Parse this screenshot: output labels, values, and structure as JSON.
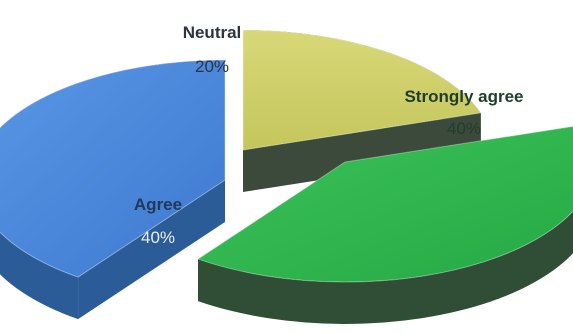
{
  "chart_data": {
    "type": "pie",
    "title": "",
    "three_d": true,
    "exploded": true,
    "slices": [
      {
        "label": "Neutral",
        "percent_label": "20%",
        "value": 20,
        "color": "#cfd06a",
        "side_color": "#3c4a3c",
        "label_color": "#2c3440",
        "percent_color": "#2c3440"
      },
      {
        "label": "Strongly agree",
        "percent_label": "40%",
        "value": 40,
        "color": "#2fb84e",
        "side_color": "#2f4e35",
        "label_color": "#1f3d2a",
        "percent_color": "#1f3d2a"
      },
      {
        "label": "Agree",
        "percent_label": "40%",
        "value": 40,
        "color": "#4a86dc",
        "side_color": "#2b5c98",
        "label_color": "#243858",
        "percent_color": "#e8eef8"
      }
    ]
  }
}
